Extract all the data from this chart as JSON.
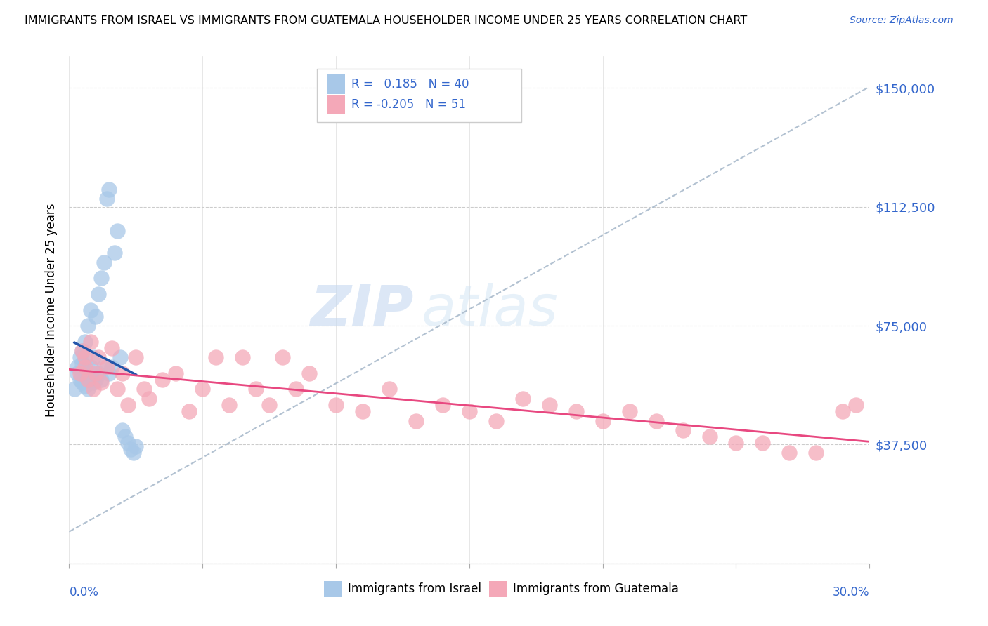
{
  "title": "IMMIGRANTS FROM ISRAEL VS IMMIGRANTS FROM GUATEMALA HOUSEHOLDER INCOME UNDER 25 YEARS CORRELATION CHART",
  "source": "Source: ZipAtlas.com",
  "ylabel": "Householder Income Under 25 years",
  "xmin": 0.0,
  "xmax": 0.3,
  "ymin": 0,
  "ymax": 160000,
  "R_israel": 0.185,
  "N_israel": 40,
  "R_guatemala": -0.205,
  "N_guatemala": 51,
  "color_israel": "#a8c8e8",
  "color_guatemala": "#f4a8b8",
  "line_color_israel": "#2255aa",
  "line_color_guatemala": "#e84880",
  "dashed_line_color": "#aabbcc",
  "watermark_zip": "ZIP",
  "watermark_atlas": "atlas",
  "israel_x": [
    0.002,
    0.003,
    0.003,
    0.004,
    0.004,
    0.005,
    0.005,
    0.005,
    0.006,
    0.006,
    0.006,
    0.007,
    0.007,
    0.007,
    0.008,
    0.008,
    0.008,
    0.009,
    0.009,
    0.01,
    0.01,
    0.011,
    0.011,
    0.012,
    0.012,
    0.013,
    0.013,
    0.014,
    0.015,
    0.015,
    0.016,
    0.017,
    0.018,
    0.019,
    0.02,
    0.021,
    0.022,
    0.023,
    0.024,
    0.025
  ],
  "israel_y": [
    55000,
    60000,
    62000,
    58000,
    65000,
    57000,
    63000,
    67000,
    56000,
    61000,
    70000,
    55000,
    75000,
    58000,
    60000,
    62000,
    80000,
    57000,
    65000,
    58000,
    78000,
    60000,
    85000,
    58000,
    90000,
    62000,
    95000,
    115000,
    60000,
    118000,
    62000,
    98000,
    105000,
    65000,
    42000,
    40000,
    38000,
    36000,
    35000,
    37000
  ],
  "guatemala_x": [
    0.004,
    0.005,
    0.006,
    0.006,
    0.007,
    0.008,
    0.009,
    0.01,
    0.011,
    0.012,
    0.014,
    0.016,
    0.018,
    0.02,
    0.022,
    0.025,
    0.028,
    0.03,
    0.035,
    0.04,
    0.045,
    0.05,
    0.055,
    0.06,
    0.065,
    0.07,
    0.075,
    0.08,
    0.085,
    0.09,
    0.1,
    0.11,
    0.12,
    0.13,
    0.14,
    0.15,
    0.16,
    0.17,
    0.18,
    0.19,
    0.2,
    0.21,
    0.22,
    0.23,
    0.24,
    0.25,
    0.26,
    0.27,
    0.28,
    0.29,
    0.295
  ],
  "guatemala_y": [
    60000,
    67000,
    65000,
    62000,
    58000,
    70000,
    55000,
    60000,
    65000,
    57000,
    62000,
    68000,
    55000,
    60000,
    50000,
    65000,
    55000,
    52000,
    58000,
    60000,
    48000,
    55000,
    65000,
    50000,
    65000,
    55000,
    50000,
    65000,
    55000,
    60000,
    50000,
    48000,
    55000,
    45000,
    50000,
    48000,
    45000,
    52000,
    50000,
    48000,
    45000,
    48000,
    45000,
    42000,
    40000,
    38000,
    38000,
    35000,
    35000,
    48000,
    50000
  ],
  "ytick_vals": [
    0,
    37500,
    75000,
    112500,
    150000
  ],
  "ytick_labels": [
    "",
    "$37,500",
    "$75,000",
    "$112,500",
    "$150,000"
  ]
}
